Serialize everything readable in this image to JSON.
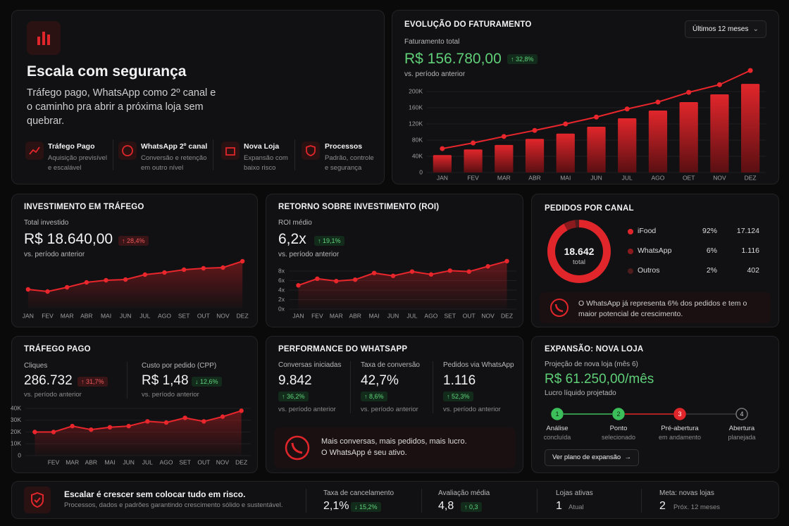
{
  "hero": {
    "title": "Escala com segurança",
    "text": "Tráfego pago, WhatsApp como 2º canal e o caminho pra abrir a próxima loja sem quebrar.",
    "features": [
      {
        "title": "Tráfego Pago",
        "text": "Aquisição previsível e escalável"
      },
      {
        "title": "WhatsApp 2º canal",
        "text": "Conversão e retenção em outro nível"
      },
      {
        "title": "Nova Loja",
        "text": "Expansão com baixo risco"
      },
      {
        "title": "Processos",
        "text": "Padrão, controle e segurança"
      }
    ]
  },
  "revenue": {
    "title": "EVOLUÇÃO DO FATURAMENTO",
    "period": "Últimos 12 meses",
    "label": "Faturamento total",
    "value": "R$ 156.780,00",
    "change": "↑ 32,8%",
    "note": "vs. período anterior",
    "chart": {
      "type": "bar-line",
      "categories": [
        "JAN",
        "FEV",
        "MAR",
        "ABR",
        "MAI",
        "JUN",
        "JUL",
        "AGO",
        "OET",
        "NOV",
        "DEZ"
      ],
      "series": [
        {
          "type": "bar",
          "color": "#c81e23",
          "values": [
            43,
            57,
            68,
            83,
            96,
            113,
            134,
            153,
            174,
            193,
            219
          ]
        },
        {
          "type": "line",
          "color": "#e8262c",
          "values": [
            59,
            73,
            89,
            104,
            120,
            137,
            157,
            174,
            198,
            217,
            252
          ]
        }
      ],
      "ylim": [
        0,
        260
      ],
      "yticks": [
        0,
        {
          "value": 40,
          "label": "40K"
        },
        {
          "value": 80,
          "label": "80K"
        },
        {
          "value": 120,
          "label": "120K"
        },
        {
          "value": 160,
          "label": "160K"
        },
        {
          "value": 200,
          "label": "200K"
        }
      ]
    }
  },
  "investment": {
    "title": "INVESTIMENTO EM TRÁFEGO",
    "label": "Total investido",
    "value": "R$ 18.640,00",
    "change": "↑ 28,4%",
    "note": "vs. período anterior",
    "chart": {
      "type": "line",
      "color": "#e8262c",
      "categories": [
        "JAN",
        "FEV",
        "MAR",
        "ABR",
        "MAI",
        "JUN",
        "JUL",
        "AGO",
        "SET",
        "OUT",
        "NOV",
        "DEZ"
      ],
      "values": [
        27,
        24,
        30,
        37,
        40,
        41,
        48,
        51,
        55,
        57,
        58,
        67
      ]
    }
  },
  "roi": {
    "title": "RETORNO SOBRE INVESTIMENTO (ROI)",
    "label": "ROI médio",
    "value": "6,2x",
    "change": "↑ 19,1%",
    "note": "vs. período anterior",
    "chart": {
      "type": "line",
      "color": "#e8262c",
      "categories": [
        "JAN",
        "FEV",
        "MAR",
        "ABR",
        "MAI",
        "JUN",
        "JUL",
        "AGO",
        "SET",
        "OUT",
        "NOV",
        "DEZ"
      ],
      "values": [
        5.0,
        6.4,
        5.9,
        6.2,
        7.6,
        7.0,
        7.9,
        7.3,
        8.1,
        7.9,
        9.0,
        10.1
      ],
      "ylim": [
        0,
        10.5
      ],
      "yticks": [
        {
          "value": 0,
          "label": "0x"
        },
        {
          "value": 2,
          "label": "2x"
        },
        {
          "value": 4,
          "label": "4x"
        },
        {
          "value": 6,
          "label": "6x"
        },
        {
          "value": 8,
          "label": "8x"
        }
      ]
    }
  },
  "orders": {
    "title": "PEDIDOS POR CANAL",
    "total": "18.642",
    "total_label": "total",
    "chart": {
      "type": "donut",
      "categories": [
        "iFood",
        "WhatsApp",
        "Outros"
      ],
      "values": [
        92,
        6,
        2
      ],
      "value_labels": [
        "92%",
        "6%",
        "2%"
      ],
      "counts": [
        "17.124",
        "1.116",
        "402"
      ],
      "colors": [
        "#e1262b",
        "#8a1a1d",
        "#4e1c1d"
      ]
    },
    "note": "O WhatsApp já representa 6% dos pedidos e tem o maior potencial de crescimento."
  },
  "traffic": {
    "title": "TRÁFEGO PAGO",
    "clicks_label": "Cliques",
    "clicks": "286.732",
    "clicks_change": "↑ 31,7%",
    "clicks_note": "vs. período anterior",
    "cpp_label": "Custo por pedido (CPP)",
    "cpp": "R$ 1,48",
    "cpp_change": "↓ 12,6%",
    "cpp_note": "vs. período anterior",
    "chart": {
      "type": "line",
      "color": "#e8262c",
      "categories": [
        null,
        "FEV",
        "MAR",
        "ABR",
        "MAI",
        "JUN",
        "JUL",
        "AGO",
        "SET",
        "OUT",
        "NOV",
        "DEZ"
      ],
      "values": [
        20,
        20,
        25,
        22,
        24,
        25,
        29,
        28,
        32,
        29,
        33,
        38
      ],
      "ylim": [
        0,
        40
      ],
      "yticks": [
        0,
        {
          "value": 10,
          "label": "10K"
        },
        {
          "value": 20,
          "label": "20K"
        },
        {
          "value": 30,
          "label": "30K"
        },
        {
          "value": 40,
          "label": "40K"
        }
      ]
    }
  },
  "whatsapp": {
    "title": "PERFORMANCE DO WHATSAPP",
    "metrics": [
      {
        "label": "Conversas iniciadas",
        "value": "9.842",
        "change": "↑ 36,2%",
        "note": "vs. período anterior"
      },
      {
        "label": "Taxa de conversão",
        "value": "42,7%",
        "change": "↑ 8,6%",
        "note": "vs. período anterior"
      },
      {
        "label": "Pedidos via WhatsApp",
        "value": "1.116",
        "change": "↑ 52,3%",
        "note": "vs. período anterior"
      }
    ],
    "banner": [
      "Mais conversas, mais pedidos, mais lucro.",
      "O WhatsApp é seu ativo."
    ]
  },
  "expansion": {
    "title": "EXPANSÃO: NOVA LOJA",
    "label": "Projeção de nova loja (mês 6)",
    "value": "R$ 61.250,00/mês",
    "sublabel": "Lucro líquido projetado",
    "steps": [
      {
        "number": "1",
        "title": "Análise",
        "status": "concluída"
      },
      {
        "number": "2",
        "title": "Ponto",
        "status": "selecionado"
      },
      {
        "number": "3",
        "title": "Pré-abertura",
        "status": "em andamento"
      },
      {
        "number": "4",
        "title": "Abertura",
        "status": "planejada"
      }
    ],
    "button": "Ver plano de expansão"
  },
  "footer": {
    "title": "Escalar é crescer sem colocar tudo em risco.",
    "text": "Processos, dados e padrões garantindo crescimento sólido e sustentável.",
    "stats": [
      {
        "label": "Taxa de cancelamento",
        "value": "2,1%",
        "change": "↓ 15,2%"
      },
      {
        "label": "Avaliação média",
        "value": "4,8",
        "change": "↑ 0,3"
      },
      {
        "label": "Lojas ativas",
        "value": "1",
        "note": "Atual"
      },
      {
        "label": "Meta: novas lojas",
        "value": "2",
        "note": "Próx. 12 meses"
      }
    ]
  }
}
